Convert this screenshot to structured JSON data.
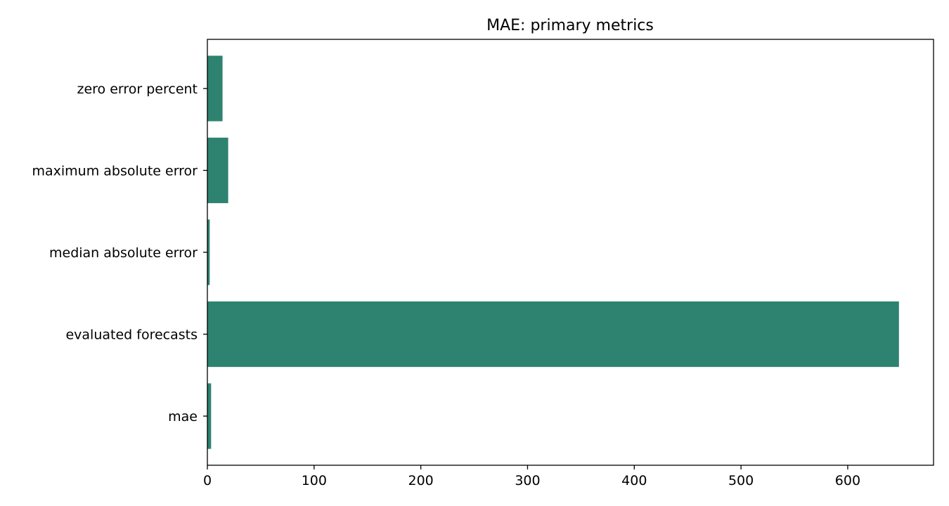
{
  "chart_data": {
    "type": "bar",
    "orientation": "horizontal",
    "title": "MAE: primary metrics",
    "xlabel": "",
    "ylabel": "",
    "categories": [
      "mae",
      "evaluated forecasts",
      "median absolute error",
      "maximum absolute error",
      "zero error percent"
    ],
    "values": [
      3.5,
      648,
      2.2,
      19.5,
      14.2
    ],
    "xlim": [
      0,
      680.4
    ],
    "xticks": [
      0,
      100,
      200,
      300,
      400,
      500,
      600
    ],
    "bar_color": "#2e8270",
    "grid": false,
    "legend": "none"
  }
}
